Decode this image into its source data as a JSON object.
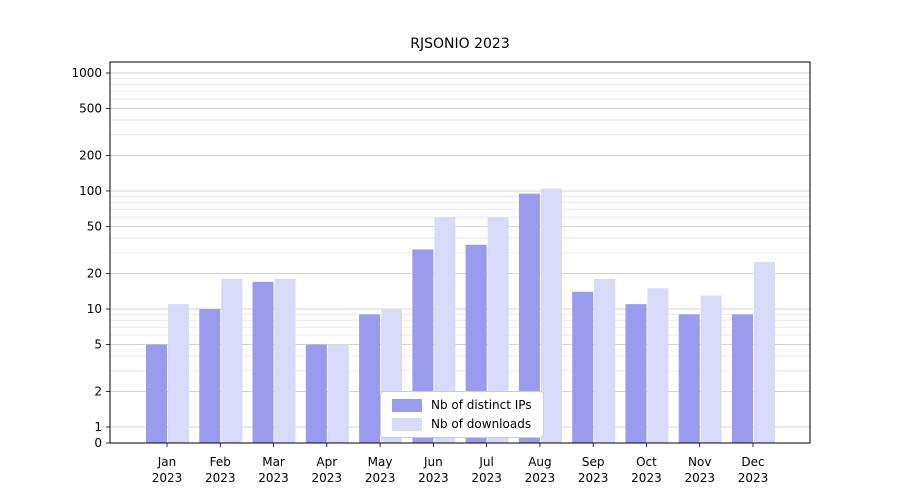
{
  "title": "RJSONIO 2023",
  "chart_data": {
    "type": "bar",
    "title": "RJSONIO 2023",
    "categories": [
      "Jan",
      "Feb",
      "Mar",
      "Apr",
      "May",
      "Jun",
      "Jul",
      "Aug",
      "Sep",
      "Oct",
      "Nov",
      "Dec"
    ],
    "category_year": "2023",
    "series": [
      {
        "name": "Nb of distinct IPs",
        "color": "#9a9aee",
        "values": [
          5,
          10,
          17,
          5,
          9,
          32,
          35,
          95,
          14,
          11,
          9,
          9
        ]
      },
      {
        "name": "Nb of downloads",
        "color": "#d9d9f9",
        "values": [
          11,
          18,
          18,
          5,
          10,
          60,
          60,
          105,
          18,
          15,
          13,
          25
        ]
      }
    ],
    "yscale": "log",
    "ylim": [
      0,
      1000
    ],
    "yticks": [
      0,
      1,
      2,
      5,
      10,
      20,
      50,
      100,
      200,
      500,
      1000
    ],
    "xlabel": "",
    "ylabel": "",
    "grid": true,
    "legend_position": "bottom-center",
    "colors": {
      "grid_major": "#d4d4d4",
      "grid_minor": "#eaeaea",
      "axis": "#000000",
      "background": "#ffffff"
    }
  }
}
